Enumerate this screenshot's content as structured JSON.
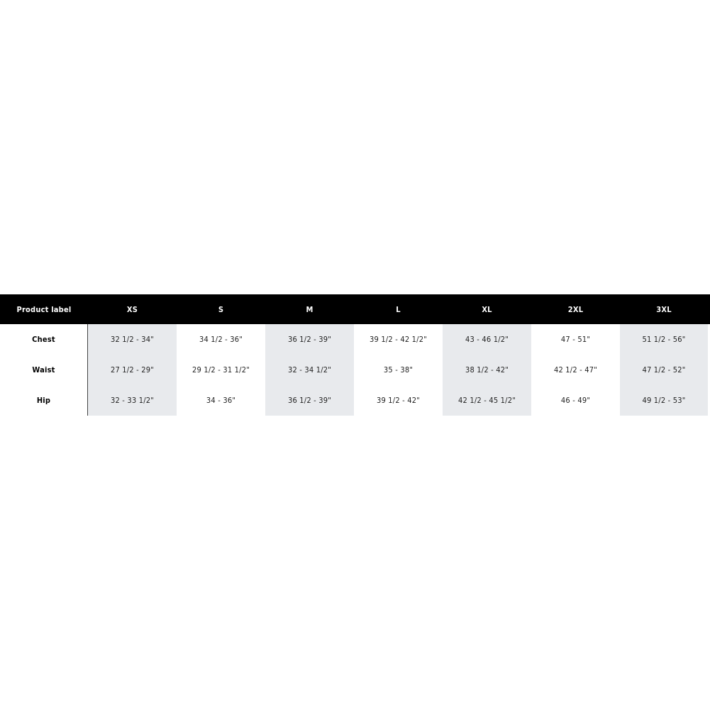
{
  "table": {
    "header": [
      "Product label",
      "XS",
      "S",
      "M",
      "L",
      "XL",
      "2XL",
      "3XL"
    ],
    "shaded_color": "#e8eaed",
    "rows": [
      {
        "label": "Chest",
        "values": [
          "32 1/2 - 34\"",
          "34 1/2 - 36\"",
          "36 1/2 - 39\"",
          "39 1/2 - 42 1/2\"",
          "43 - 46 1/2\"",
          "47 - 51\"",
          "51 1/2 - 56\""
        ]
      },
      {
        "label": "Waist",
        "values": [
          "27 1/2 - 29\"",
          "29 1/2 - 31 1/2\"",
          "32 - 34 1/2\"",
          "35 - 38\"",
          "38 1/2 - 42\"",
          "42 1/2 - 47\"",
          "47 1/2 - 52\""
        ]
      },
      {
        "label": "Hip",
        "values": [
          "32 - 33 1/2\"",
          "34 - 36\"",
          "36 1/2 - 39\"",
          "39 1/2 - 42\"",
          "42 1/2 - 45 1/2\"",
          "46 - 49\"",
          "49 1/2 - 53\""
        ]
      }
    ]
  }
}
